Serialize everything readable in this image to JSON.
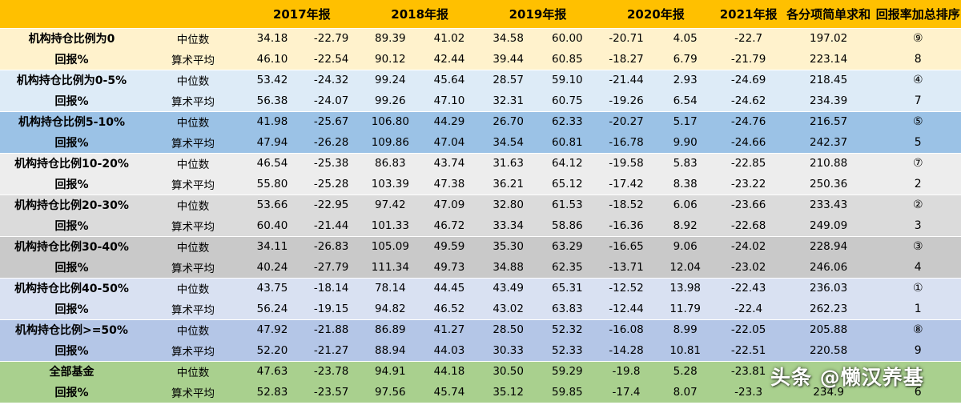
{
  "colors": {
    "header_bg": "#ffc000",
    "group_bgs": [
      "#fff2cc",
      "#ddebf7",
      "#9bc2e6",
      "#ededed",
      "#dbdbdb",
      "#c9c9c9",
      "#d9e1f2",
      "#b4c6e7",
      "#a9d08e"
    ]
  },
  "headers": [
    "",
    "",
    "2017年报",
    "",
    "2018年报",
    "",
    "2019年报",
    "",
    "2020年报",
    "",
    "2021年报",
    "各分项简单求和",
    "回报率加总排序"
  ],
  "groups": [
    {
      "label1": "机构持仓比例为0",
      "label2": "回报%",
      "median": [
        "中位数",
        "34.18",
        "-22.79",
        "89.39",
        "41.02",
        "34.58",
        "60.00",
        "-20.71",
        "4.05",
        "-22.7",
        "197.02",
        "⑨"
      ],
      "mean": [
        "算术平均",
        "46.10",
        "-22.54",
        "90.12",
        "42.44",
        "39.44",
        "60.85",
        "-18.27",
        "6.79",
        "-21.79",
        "223.14",
        "8"
      ]
    },
    {
      "label1": "机构持仓比例为0-5%",
      "label2": "回报%",
      "median": [
        "中位数",
        "53.42",
        "-24.32",
        "99.24",
        "45.64",
        "28.57",
        "59.10",
        "-21.44",
        "2.93",
        "-24.69",
        "218.45",
        "④"
      ],
      "mean": [
        "算术平均",
        "56.38",
        "-24.07",
        "99.26",
        "47.10",
        "32.31",
        "60.75",
        "-19.26",
        "6.54",
        "-24.62",
        "234.39",
        "7"
      ]
    },
    {
      "label1": "机构持仓比例5-10%",
      "label2": "回报%",
      "median": [
        "中位数",
        "41.98",
        "-25.67",
        "106.80",
        "44.29",
        "26.70",
        "62.33",
        "-20.27",
        "5.17",
        "-24.76",
        "216.57",
        "⑤"
      ],
      "mean": [
        "算术平均",
        "47.94",
        "-26.28",
        "109.86",
        "47.04",
        "34.54",
        "60.81",
        "-16.78",
        "9.90",
        "-24.66",
        "242.37",
        "5"
      ]
    },
    {
      "label1": "机构持仓比例10-20%",
      "label2": "回报%",
      "median": [
        "中位数",
        "46.54",
        "-25.38",
        "86.83",
        "43.74",
        "31.63",
        "64.12",
        "-19.58",
        "5.83",
        "-22.85",
        "210.88",
        "⑦"
      ],
      "mean": [
        "算术平均",
        "55.80",
        "-25.28",
        "103.39",
        "47.38",
        "36.21",
        "65.12",
        "-17.42",
        "8.38",
        "-23.22",
        "250.36",
        "2"
      ]
    },
    {
      "label1": "机构持仓比例20-30%",
      "label2": "回报%",
      "median": [
        "中位数",
        "53.66",
        "-22.95",
        "97.42",
        "47.09",
        "32.80",
        "61.53",
        "-18.52",
        "6.06",
        "-23.66",
        "233.43",
        "②"
      ],
      "mean": [
        "算术平均",
        "60.40",
        "-21.44",
        "101.33",
        "46.72",
        "33.34",
        "58.86",
        "-16.36",
        "8.92",
        "-22.68",
        "249.09",
        "3"
      ]
    },
    {
      "label1": "机构持仓比例30-40%",
      "label2": "回报%",
      "median": [
        "中位数",
        "34.11",
        "-26.83",
        "105.09",
        "49.59",
        "35.30",
        "63.29",
        "-16.65",
        "9.06",
        "-24.02",
        "228.94",
        "③"
      ],
      "mean": [
        "算术平均",
        "40.24",
        "-27.79",
        "111.34",
        "49.73",
        "34.88",
        "62.35",
        "-13.71",
        "12.04",
        "-23.02",
        "246.06",
        "4"
      ]
    },
    {
      "label1": "机构持仓比例40-50%",
      "label2": "回报%",
      "median": [
        "中位数",
        "43.75",
        "-18.14",
        "78.14",
        "44.45",
        "43.49",
        "65.31",
        "-12.52",
        "13.98",
        "-22.43",
        "236.03",
        "①"
      ],
      "mean": [
        "算术平均",
        "56.24",
        "-19.15",
        "94.82",
        "46.52",
        "43.02",
        "63.83",
        "-12.44",
        "11.79",
        "-22.4",
        "262.23",
        "1"
      ]
    },
    {
      "label1": "机构持仓比例>=50%",
      "label2": "回报%",
      "median": [
        "中位数",
        "47.92",
        "-21.88",
        "86.89",
        "41.27",
        "28.50",
        "52.32",
        "-16.08",
        "8.99",
        "-22.05",
        "205.88",
        "⑧"
      ],
      "mean": [
        "算术平均",
        "52.20",
        "-21.27",
        "88.94",
        "44.03",
        "30.33",
        "52.33",
        "-14.28",
        "10.81",
        "-22.51",
        "220.58",
        "9"
      ]
    },
    {
      "label1": "全部基金",
      "label2": "回报%",
      "median": [
        "中位数",
        "47.63",
        "-23.78",
        "94.91",
        "44.18",
        "30.50",
        "59.29",
        "-19.8",
        "5.28",
        "-23.81",
        "",
        ""
      ],
      "mean": [
        "算术平均",
        "52.83",
        "-23.57",
        "97.56",
        "45.74",
        "35.12",
        "59.85",
        "-17.4",
        "8.07",
        "-23.3",
        "234.9",
        "6"
      ]
    }
  ],
  "watermark": "头条 @懒汉养基"
}
